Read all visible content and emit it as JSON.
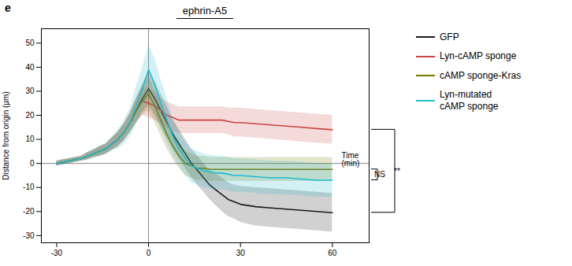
{
  "chart_data": {
    "type": "line",
    "title": "ephrin-A5",
    "ylabel": "Distance from origin (μm)",
    "xlim": [
      -35,
      72
    ],
    "ylim": [
      -33,
      56
    ],
    "xticks": [
      -30,
      0,
      30,
      60
    ],
    "yticks": [
      -30,
      -20,
      -10,
      0,
      10,
      20,
      30,
      40,
      50
    ],
    "grid": false,
    "legend": "right",
    "x": [
      -30,
      -28,
      -26,
      -24,
      -22,
      -20,
      -18,
      -16,
      -14,
      -12,
      -10,
      -8,
      -6,
      -4,
      -2,
      0,
      2,
      4,
      6,
      8,
      10,
      12,
      14,
      16,
      18,
      20,
      22,
      24,
      26,
      28,
      30,
      35,
      40,
      45,
      50,
      55,
      60
    ],
    "series": [
      {
        "name": "GFP",
        "color": "#1a1a1a",
        "values": [
          0,
          0.5,
          1,
          1.5,
          2,
          3,
          4,
          5,
          6,
          8,
          10,
          13,
          17,
          22,
          27,
          31,
          27,
          22,
          17,
          12,
          8,
          4,
          0,
          -3,
          -6,
          -9,
          -11,
          -13,
          -15,
          -16,
          -17,
          -18,
          -18.5,
          -19,
          -19.5,
          -20,
          -20.5
        ],
        "sem": [
          1,
          1,
          1,
          1,
          1,
          1.5,
          1.5,
          2,
          2,
          2.5,
          3,
          3.5,
          4,
          5,
          6,
          7,
          7,
          7,
          6.5,
          6,
          6,
          6,
          6,
          6,
          6,
          6,
          6.5,
          7,
          7,
          7,
          7.5,
          8,
          8,
          8,
          8,
          8,
          8
        ]
      },
      {
        "name": "Lyn-cAMP sponge",
        "color": "#cc4444",
        "values": [
          0,
          0.5,
          1,
          1.5,
          2,
          3,
          4,
          5,
          6,
          8,
          10,
          13,
          17,
          22,
          26,
          25,
          24,
          22,
          20,
          19,
          18,
          18,
          18,
          18,
          18,
          18,
          18,
          18,
          17.5,
          17,
          17,
          16.5,
          16,
          15.5,
          15,
          14.5,
          14
        ],
        "sem": [
          1,
          1,
          1,
          1,
          1,
          1.5,
          1.5,
          2,
          2,
          2.5,
          3,
          3.5,
          4,
          5,
          6,
          6,
          6,
          5.5,
          5.5,
          5.5,
          5.5,
          5.5,
          5.5,
          5.5,
          5.5,
          5.5,
          5.5,
          5.5,
          5.5,
          6,
          6,
          6,
          6,
          6,
          6,
          6,
          6
        ]
      },
      {
        "name": "cAMP sponge-Kras",
        "color": "#7a7a00",
        "values": [
          0,
          0.5,
          1,
          1.5,
          2,
          3,
          4,
          5,
          6,
          8,
          10,
          13,
          17,
          22,
          26,
          29,
          24,
          18,
          12,
          7,
          3,
          0,
          -1,
          -2,
          -2,
          -2.5,
          -2.5,
          -2.5,
          -2.5,
          -2.5,
          -2.5,
          -2.5,
          -2.5,
          -2.5,
          -2.5,
          -2.5,
          -2.5
        ],
        "sem": [
          1,
          1,
          1,
          1,
          1,
          1.5,
          1.5,
          2,
          2,
          2.5,
          3,
          3.5,
          4,
          5,
          6,
          7,
          7,
          6.5,
          6,
          5.5,
          5,
          5,
          5,
          5,
          5,
          5,
          5,
          5,
          5,
          5,
          5,
          5,
          5,
          5,
          5,
          5,
          5
        ]
      },
      {
        "name": "Lyn-mutated\ncAMP sponge",
        "color": "#22bbcc",
        "values": [
          0,
          0.5,
          1,
          1.5,
          2,
          3,
          4,
          5,
          6,
          8,
          10,
          13,
          17,
          24,
          31,
          39,
          33,
          25,
          18,
          11,
          6,
          2,
          -1,
          -2,
          -3,
          -3.5,
          -4,
          -4,
          -4.5,
          -5,
          -5,
          -5.5,
          -6,
          -6,
          -6.5,
          -7,
          -7
        ],
        "sem": [
          1,
          1,
          1,
          1,
          1,
          1.5,
          2,
          2,
          2.5,
          3,
          4,
          5,
          6,
          8,
          9,
          10,
          11,
          10,
          9,
          8,
          7,
          7,
          7,
          7,
          7,
          7,
          7,
          7,
          7,
          7,
          7,
          7,
          7,
          7,
          7,
          7,
          7
        ]
      }
    ],
    "reference_lines": {
      "x": [
        0
      ],
      "y": [
        0
      ]
    },
    "annotations": [
      {
        "text": "e"
      },
      {
        "text": "Time\n(min)",
        "x": 63,
        "y": 1.5
      },
      {
        "text": "**",
        "y1": 14,
        "y2": -20.5
      },
      {
        "text": "NS",
        "y1": -2.5,
        "y2": -7
      }
    ]
  }
}
